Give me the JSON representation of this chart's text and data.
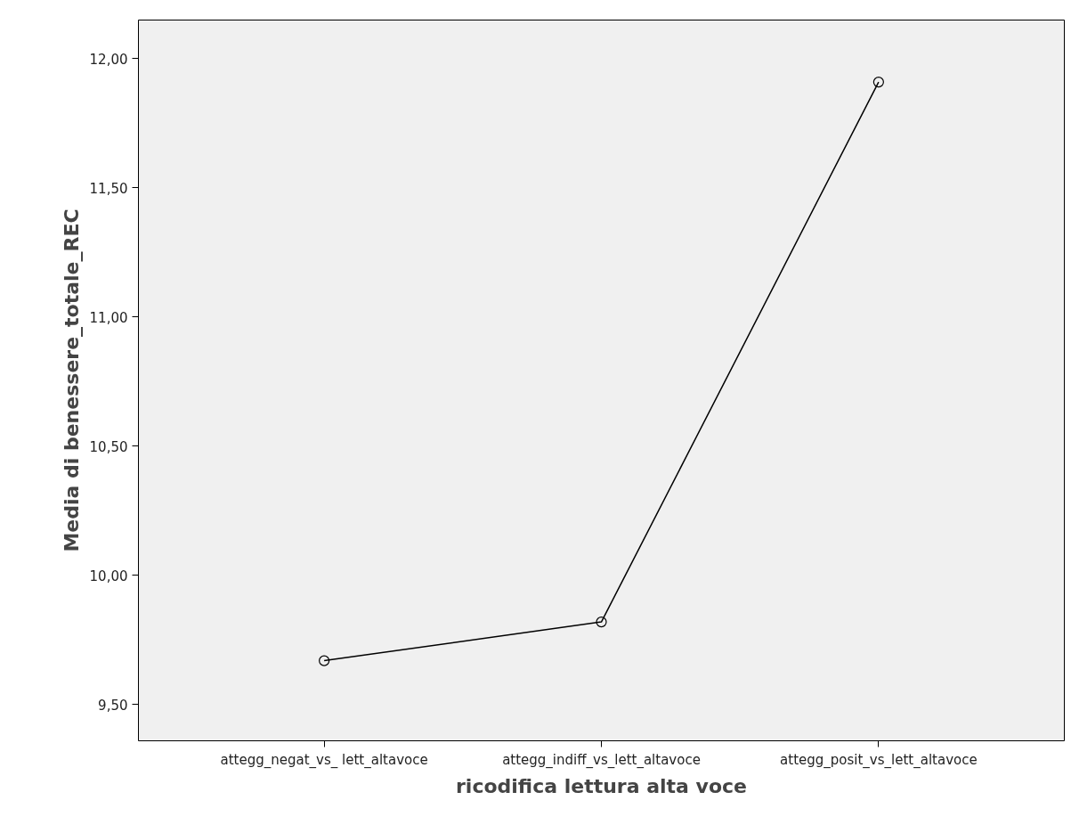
{
  "chart_data": {
    "type": "line",
    "xlabel": "ricodifica lettura alta voce",
    "ylabel": "Media di benessere_totale_REC",
    "categories": [
      "attegg_negat_vs_ lett_altavoce",
      "attegg_indiff_vs_lett_altavoce",
      "attegg_posit_vs_lett_altavoce"
    ],
    "values": [
      9.67,
      9.82,
      11.91
    ],
    "color": "#000000",
    "marker": "circle",
    "line_style": "solid",
    "ylim": [
      9.36,
      12.15
    ],
    "yticks": [
      {
        "value": 9.5,
        "label": "9,50"
      },
      {
        "value": 10,
        "label": "10,00"
      },
      {
        "value": 10.5,
        "label": "10,50"
      },
      {
        "value": 11,
        "label": "11,00"
      },
      {
        "value": 11.5,
        "label": "11,50"
      },
      {
        "value": 12,
        "label": "12,00"
      }
    ],
    "grid": false
  }
}
